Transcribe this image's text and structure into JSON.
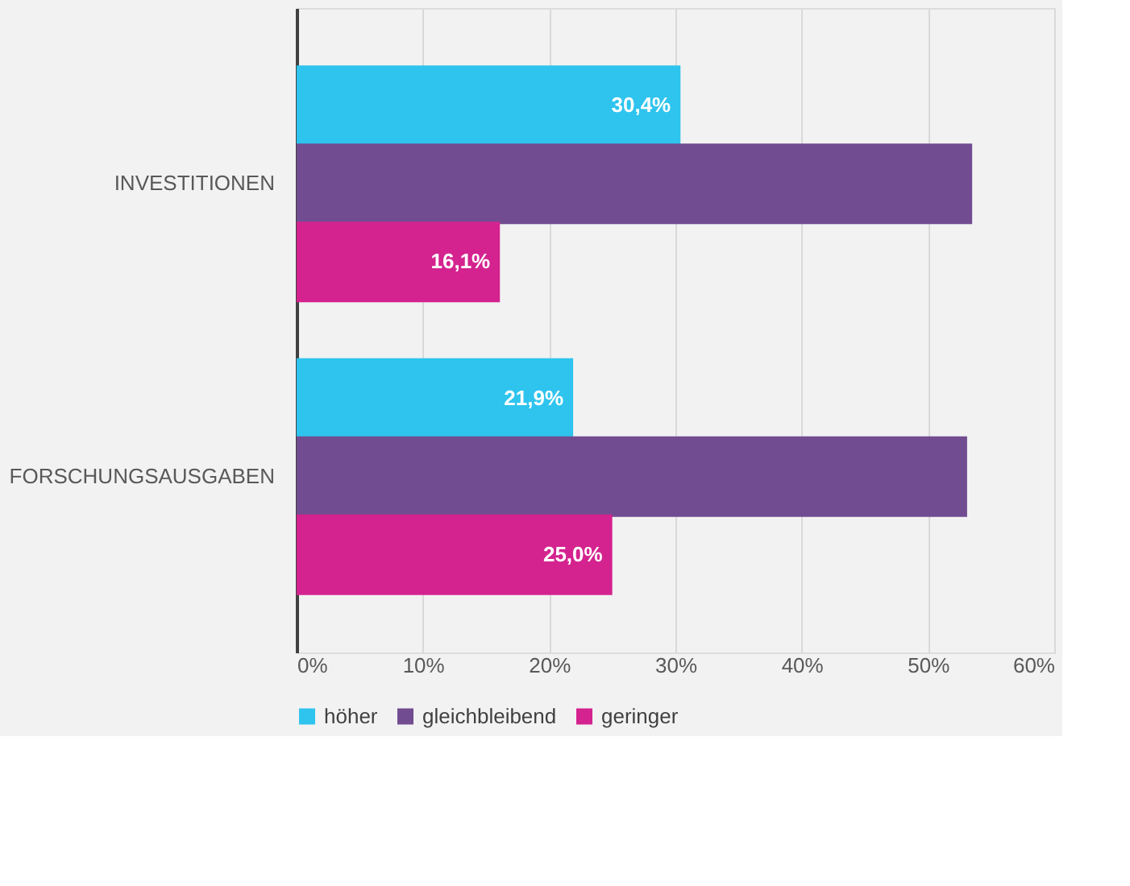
{
  "chart_data": {
    "type": "bar",
    "orientation": "horizontal",
    "categories": [
      "INVESTITIONEN",
      "FORSCHUNGSAUSGABEN"
    ],
    "series": [
      {
        "name": "höher",
        "color": "#2ec4ee",
        "values": [
          30.4,
          21.9
        ],
        "value_labels": [
          "30,4%",
          "21,9%"
        ]
      },
      {
        "name": "gleichbleibend",
        "color": "#724c91",
        "values": [
          53.5,
          53.1
        ],
        "value_labels": [
          null,
          null
        ]
      },
      {
        "name": "geringer",
        "color": "#d4238f",
        "values": [
          16.1,
          25.0
        ],
        "value_labels": [
          "16,1%",
          "25,0%"
        ]
      }
    ],
    "xlim": [
      0,
      60
    ],
    "xticks": [
      {
        "value": 0,
        "label": "0%"
      },
      {
        "value": 10,
        "label": "10%"
      },
      {
        "value": 20,
        "label": "20%"
      },
      {
        "value": 30,
        "label": "30%"
      },
      {
        "value": 40,
        "label": "40%"
      },
      {
        "value": 50,
        "label": "50%"
      },
      {
        "value": 60,
        "label": "60%"
      }
    ],
    "grid": "x",
    "legend": "bottom"
  }
}
